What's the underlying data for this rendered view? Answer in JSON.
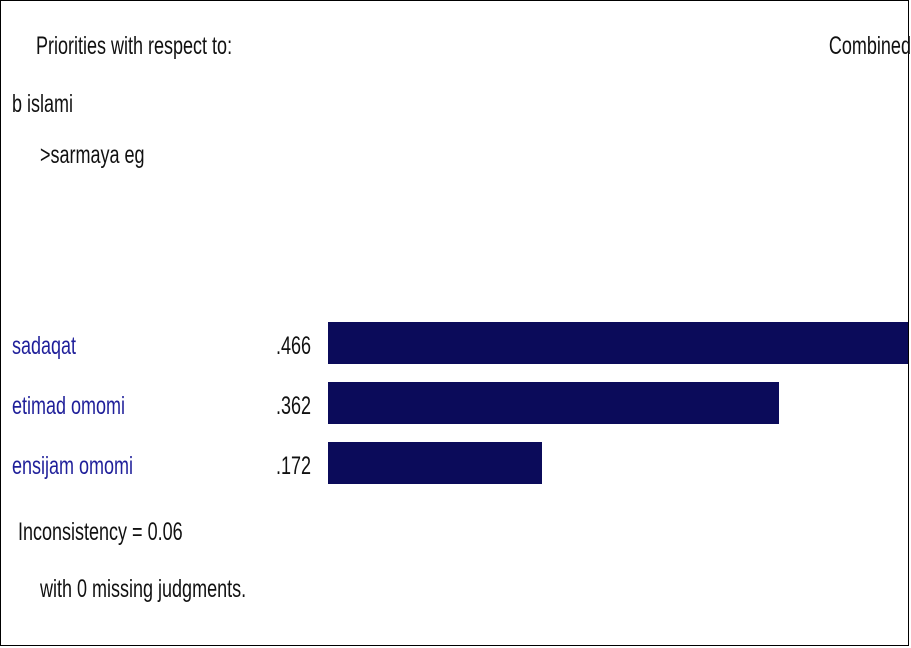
{
  "header": {
    "priorities_label": "Priorities with respect to:",
    "combined_label": "Combined"
  },
  "hierarchy": {
    "goal": "b islami",
    "criterion": ">sarmaya eg"
  },
  "footer": {
    "inconsistency": "Inconsistency = 0.06",
    "missing": "with 0  missing judgments."
  },
  "colors": {
    "bar": "#0b0b5a",
    "label": "#1f1f9a"
  },
  "chart_data": {
    "type": "bar",
    "orientation": "horizontal",
    "categories": [
      "sadaqat",
      "etimad omomi",
      "ensijam omomi"
    ],
    "values": [
      0.466,
      0.362,
      0.172
    ],
    "value_labels": [
      ".466",
      ".362",
      ".172"
    ],
    "title": "",
    "xlabel": "",
    "ylabel": "",
    "xlim": [
      0,
      0.466
    ]
  }
}
